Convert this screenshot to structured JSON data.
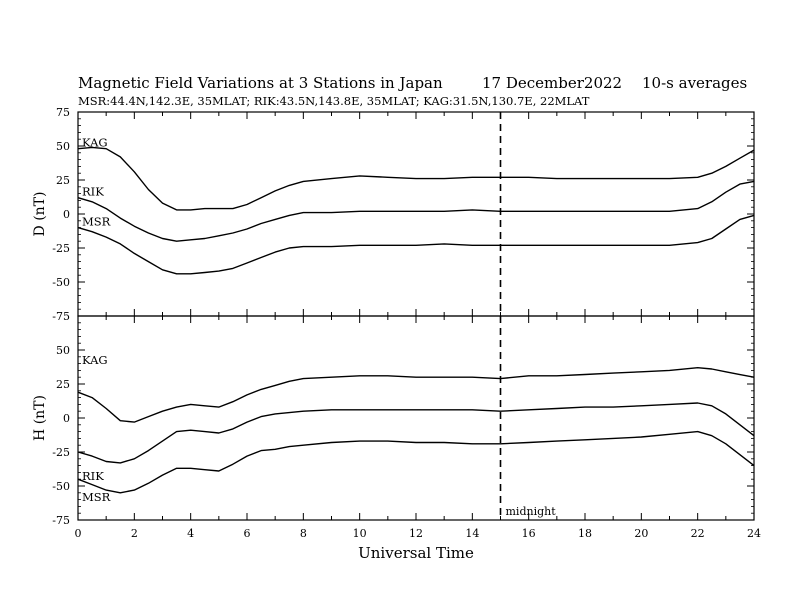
{
  "title": "Magnetic Field Variations at 3 Stations in Japan",
  "date": "17 December2022",
  "averaging": "10-s averages",
  "stations_info": "MSR:44.4N,142.3E, 35MLAT;  RIK:43.5N,143.8E, 35MLAT;  KAG:31.5N,130.7E, 22MLAT",
  "chart_data": [
    {
      "type": "line",
      "panel": "top",
      "ylabel": "D (nT)",
      "ylim": [
        -75,
        75
      ],
      "yticks": [
        -75,
        -50,
        -25,
        0,
        25,
        50,
        75
      ],
      "xlim": [
        0,
        24
      ],
      "grid": false,
      "series": [
        {
          "name": "KAG",
          "x": [
            0,
            0.5,
            1,
            1.5,
            2,
            2.5,
            3,
            3.5,
            4,
            4.5,
            5,
            5.5,
            6,
            6.5,
            7,
            7.5,
            8,
            9,
            10,
            11,
            12,
            13,
            14,
            15,
            16,
            17,
            18,
            19,
            20,
            21,
            22,
            22.5,
            23,
            23.5,
            24
          ],
          "y": [
            48,
            49,
            48,
            42,
            31,
            18,
            8,
            3,
            3,
            4,
            4,
            4,
            7,
            12,
            17,
            21,
            24,
            26,
            28,
            27,
            26,
            26,
            27,
            27,
            27,
            26,
            26,
            26,
            26,
            26,
            27,
            30,
            35,
            41,
            47
          ]
        },
        {
          "name": "RIK",
          "x": [
            0,
            0.5,
            1,
            1.5,
            2,
            2.5,
            3,
            3.5,
            4,
            4.5,
            5,
            5.5,
            6,
            6.5,
            7,
            7.5,
            8,
            9,
            10,
            11,
            12,
            13,
            14,
            15,
            16,
            17,
            18,
            19,
            20,
            21,
            22,
            22.5,
            23,
            23.5,
            24
          ],
          "y": [
            12,
            9,
            4,
            -3,
            -9,
            -14,
            -18,
            -20,
            -19,
            -18,
            -16,
            -14,
            -11,
            -7,
            -4,
            -1,
            1,
            1,
            2,
            2,
            2,
            2,
            3,
            2,
            2,
            2,
            2,
            2,
            2,
            2,
            4,
            9,
            16,
            22,
            24
          ]
        },
        {
          "name": "MSR",
          "x": [
            0,
            0.5,
            1,
            1.5,
            2,
            2.5,
            3,
            3.5,
            4,
            4.5,
            5,
            5.5,
            6,
            6.5,
            7,
            7.5,
            8,
            9,
            10,
            11,
            12,
            13,
            14,
            15,
            16,
            17,
            18,
            19,
            20,
            21,
            22,
            22.5,
            23,
            23.5,
            24
          ],
          "y": [
            -10,
            -13,
            -17,
            -22,
            -29,
            -35,
            -41,
            -44,
            -44,
            -43,
            -42,
            -40,
            -36,
            -32,
            -28,
            -25,
            -24,
            -24,
            -23,
            -23,
            -23,
            -22,
            -23,
            -23,
            -23,
            -23,
            -23,
            -23,
            -23,
            -23,
            -21,
            -18,
            -11,
            -4,
            -1
          ]
        }
      ]
    },
    {
      "type": "line",
      "panel": "bottom",
      "ylabel": "H (nT)",
      "xlabel": "Universal Time",
      "ylim": [
        -75,
        75
      ],
      "yticks": [
        -75,
        -50,
        -25,
        0,
        25,
        50
      ],
      "xlim": [
        0,
        24
      ],
      "xticks": [
        0,
        2,
        4,
        6,
        8,
        10,
        12,
        14,
        16,
        18,
        20,
        22,
        24
      ],
      "grid": false,
      "series": [
        {
          "name": "KAG",
          "x": [
            0,
            0.5,
            1,
            1.5,
            2,
            2.5,
            3,
            3.5,
            4,
            4.5,
            5,
            5.5,
            6,
            6.5,
            7,
            7.5,
            8,
            9,
            10,
            11,
            12,
            13,
            14,
            15,
            16,
            17,
            18,
            19,
            20,
            21,
            22,
            22.5,
            23,
            23.5,
            24
          ],
          "y": [
            19,
            15,
            7,
            -2,
            -3,
            1,
            5,
            8,
            10,
            9,
            8,
            12,
            17,
            21,
            24,
            27,
            29,
            30,
            31,
            31,
            30,
            30,
            30,
            29,
            31,
            31,
            32,
            33,
            34,
            35,
            37,
            36,
            34,
            32,
            30
          ]
        },
        {
          "name": "RIK",
          "x": [
            0,
            0.5,
            1,
            1.5,
            2,
            2.5,
            3,
            3.5,
            4,
            4.5,
            5,
            5.5,
            6,
            6.5,
            7,
            7.5,
            8,
            9,
            10,
            11,
            12,
            13,
            14,
            15,
            16,
            17,
            18,
            19,
            20,
            21,
            22,
            22.5,
            23,
            23.5,
            24
          ],
          "y": [
            -25,
            -28,
            -32,
            -33,
            -30,
            -24,
            -17,
            -10,
            -9,
            -10,
            -11,
            -8,
            -3,
            1,
            3,
            4,
            5,
            6,
            6,
            6,
            6,
            6,
            6,
            5,
            6,
            7,
            8,
            8,
            9,
            10,
            11,
            9,
            3,
            -5,
            -13
          ]
        },
        {
          "name": "MSR",
          "x": [
            0,
            0.5,
            1,
            1.5,
            2,
            2.5,
            3,
            3.5,
            4,
            4.5,
            5,
            5.5,
            6,
            6.5,
            7,
            7.5,
            8,
            9,
            10,
            11,
            12,
            13,
            14,
            15,
            16,
            17,
            18,
            19,
            20,
            21,
            22,
            22.5,
            23,
            23.5,
            24
          ],
          "y": [
            -45,
            -49,
            -53,
            -55,
            -53,
            -48,
            -42,
            -37,
            -37,
            -38,
            -39,
            -34,
            -28,
            -24,
            -23,
            -21,
            -20,
            -18,
            -17,
            -17,
            -18,
            -18,
            -19,
            -19,
            -18,
            -17,
            -16,
            -15,
            -14,
            -12,
            -10,
            -13,
            -19,
            -27,
            -35
          ]
        }
      ]
    }
  ],
  "midnight_marker": {
    "x": 15,
    "label": "midnight"
  }
}
